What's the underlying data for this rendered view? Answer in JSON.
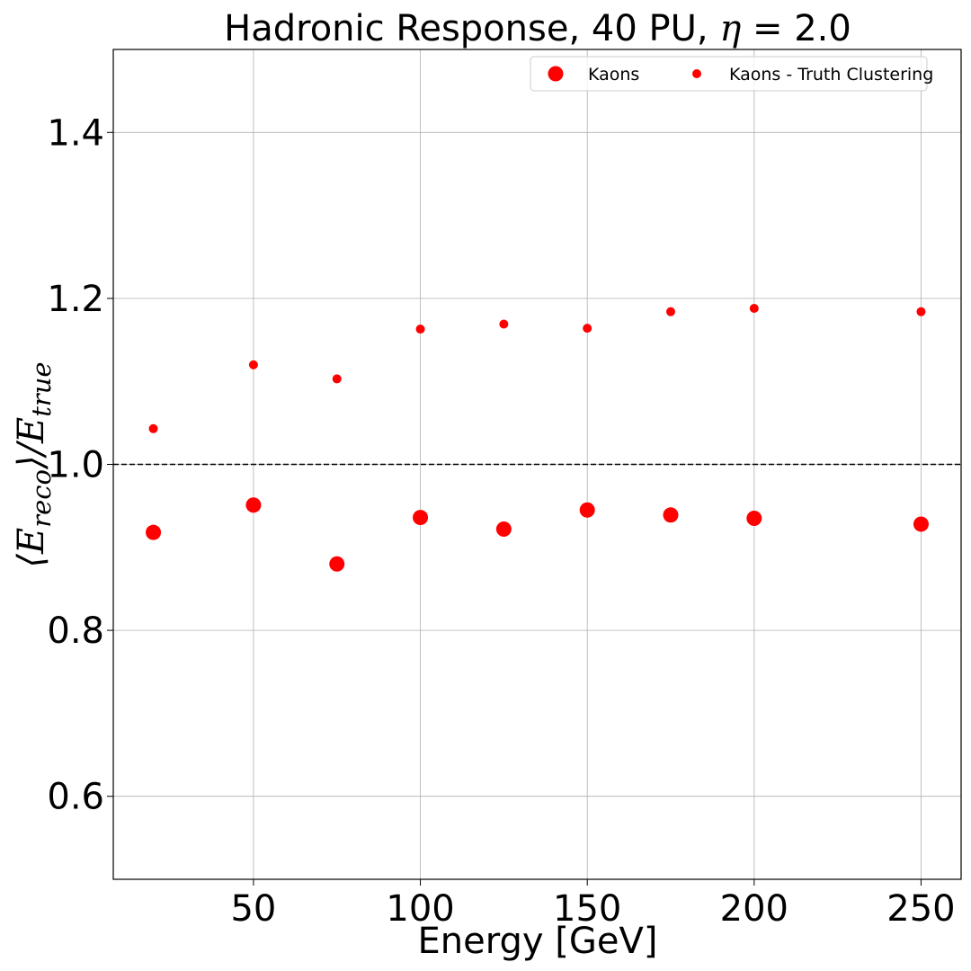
{
  "chart_data": {
    "type": "scatter",
    "title": "Hadronic Response, 40 PU, η = 2.0",
    "xlabel": "Energy [GeV]",
    "ylabel": "⟨E_reco⟩/E_true",
    "xlim": [
      8,
      262
    ],
    "ylim": [
      0.5,
      1.5
    ],
    "xticks": [
      50,
      100,
      150,
      200,
      250
    ],
    "yticks": [
      0.6,
      0.8,
      1.0,
      1.2,
      1.4
    ],
    "ytick_labels": [
      "0.6",
      "0.8",
      "1.0",
      "1.2",
      "1.4"
    ],
    "grid": true,
    "legend_position": "top-right",
    "reference_line": {
      "y": 1.0,
      "style": "dashed",
      "color": "#000000"
    },
    "series": [
      {
        "name": "Kaons",
        "color": "#ff0000",
        "marker": "large-circle",
        "x": [
          20,
          50,
          75,
          100,
          125,
          150,
          175,
          200,
          250
        ],
        "y": [
          0.918,
          0.951,
          0.88,
          0.936,
          0.922,
          0.945,
          0.939,
          0.935,
          0.928
        ]
      },
      {
        "name": "Kaons - Truth Clustering",
        "color": "#ff0000",
        "marker": "small-circle",
        "x": [
          20,
          50,
          75,
          100,
          125,
          150,
          175,
          200,
          250
        ],
        "y": [
          1.043,
          1.12,
          1.103,
          1.163,
          1.169,
          1.164,
          1.184,
          1.188,
          1.184
        ]
      }
    ]
  }
}
